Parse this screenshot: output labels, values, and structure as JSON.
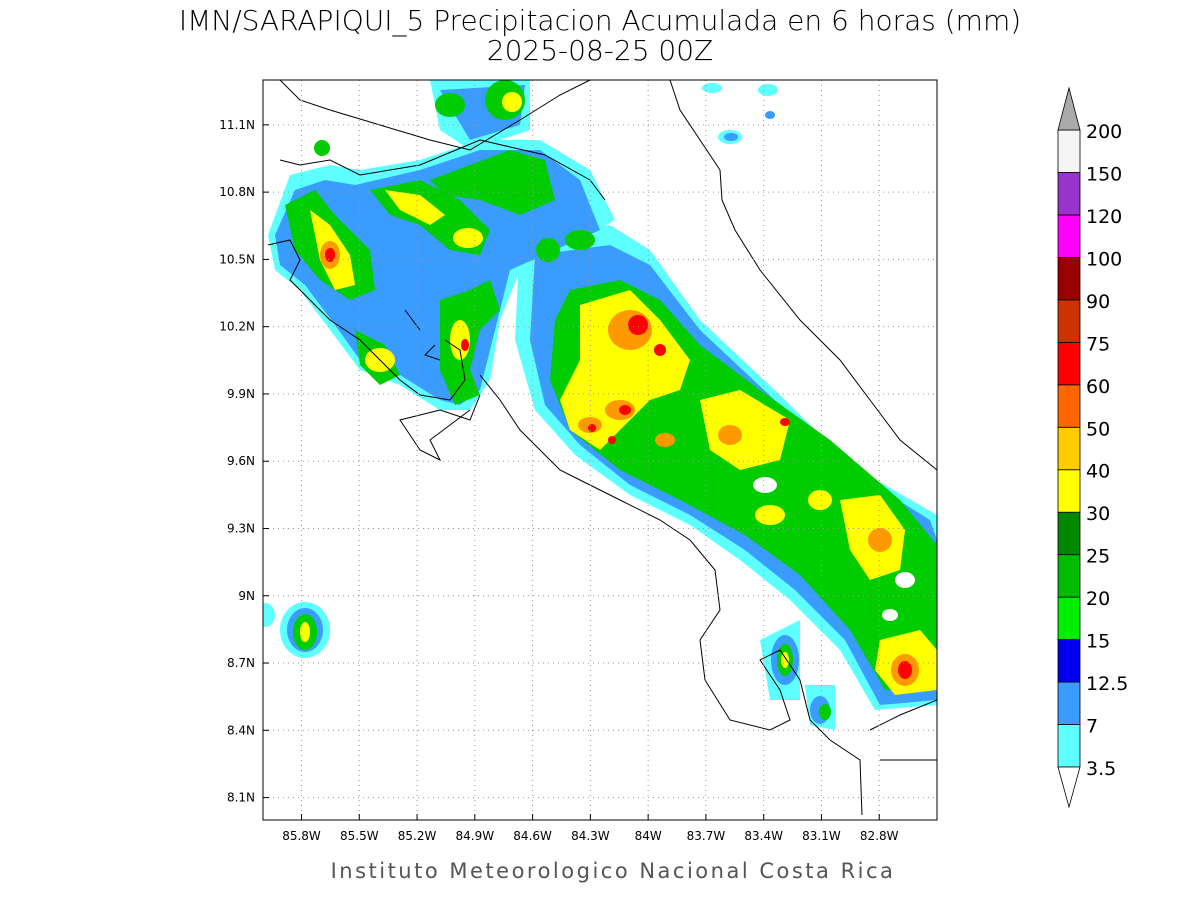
{
  "header": {
    "title": "IMN/SARAPIQUI_5 Precipitacion Acumulada en 6 horas (mm)",
    "subtitle": "2025-08-25 00Z"
  },
  "map": {
    "xlim": [
      -86.0,
      -82.5
    ],
    "ylim": [
      8.0,
      11.3
    ],
    "grid": true,
    "xticks": [
      {
        "value": -85.8,
        "label": "85.8W"
      },
      {
        "value": -85.5,
        "label": "85.5W"
      },
      {
        "value": -85.2,
        "label": "85.2W"
      },
      {
        "value": -84.9,
        "label": "84.9W"
      },
      {
        "value": -84.6,
        "label": "84.6W"
      },
      {
        "value": -84.3,
        "label": "84.3W"
      },
      {
        "value": -84.0,
        "label": "84W"
      },
      {
        "value": -83.7,
        "label": "83.7W"
      },
      {
        "value": -83.4,
        "label": "83.4W"
      },
      {
        "value": -83.1,
        "label": "83.1W"
      },
      {
        "value": -82.8,
        "label": "82.8W"
      }
    ],
    "yticks": [
      {
        "value": 8.1,
        "label": "8.1N"
      },
      {
        "value": 8.4,
        "label": "8.4N"
      },
      {
        "value": 8.7,
        "label": "8.7N"
      },
      {
        "value": 9.0,
        "label": "9N"
      },
      {
        "value": 9.3,
        "label": "9.3N"
      },
      {
        "value": 9.6,
        "label": "9.6N"
      },
      {
        "value": 9.9,
        "label": "9.9N"
      },
      {
        "value": 10.2,
        "label": "10.2N"
      },
      {
        "value": 10.5,
        "label": "10.5N"
      },
      {
        "value": 10.8,
        "label": "10.8N"
      },
      {
        "value": 11.1,
        "label": "11.1N"
      }
    ]
  },
  "colorbar": {
    "levels": [
      3.5,
      7,
      12.5,
      15,
      20,
      25,
      30,
      40,
      50,
      60,
      75,
      90,
      100,
      120,
      150,
      200
    ],
    "colors": [
      "#5effff",
      "#3a9cff",
      "#0000ee",
      "#00ee00",
      "#00bb00",
      "#008800",
      "#ffff00",
      "#ffcc00",
      "#ff6600",
      "#ff0000",
      "#cc3300",
      "#990000",
      "#ff00ff",
      "#9933cc",
      "#f5f5f5"
    ],
    "under_color": "#ffffff",
    "over_color": "#aaaaaa"
  },
  "footer": "Instituto Meteorologico Nacional Costa Rica"
}
